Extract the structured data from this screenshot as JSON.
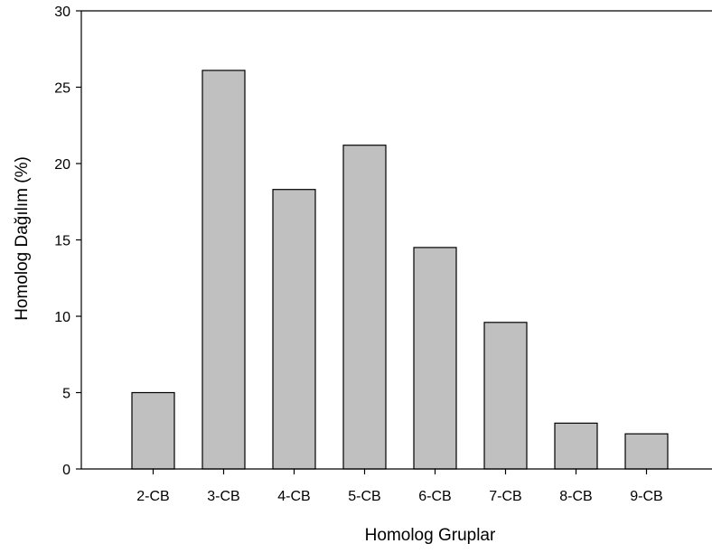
{
  "chart_data": {
    "type": "bar",
    "title": "",
    "xlabel": "Homolog Gruplar",
    "ylabel": "Homolog Dağılım (%)",
    "categories": [
      "2-CB",
      "3-CB",
      "4-CB",
      "5-CB",
      "6-CB",
      "7-CB",
      "8-CB",
      "9-CB"
    ],
    "values": [
      5.0,
      26.1,
      18.3,
      21.2,
      14.5,
      9.6,
      3.0,
      2.3
    ],
    "ylim": [
      0,
      30
    ],
    "yticks": [
      "0",
      "5",
      "10",
      "15",
      "20",
      "25",
      "30"
    ],
    "grid": false,
    "legend": "none",
    "colors": {
      "bar_fill": "#c0c0c0",
      "bar_stroke": "#000000",
      "axis": "#000000"
    }
  }
}
